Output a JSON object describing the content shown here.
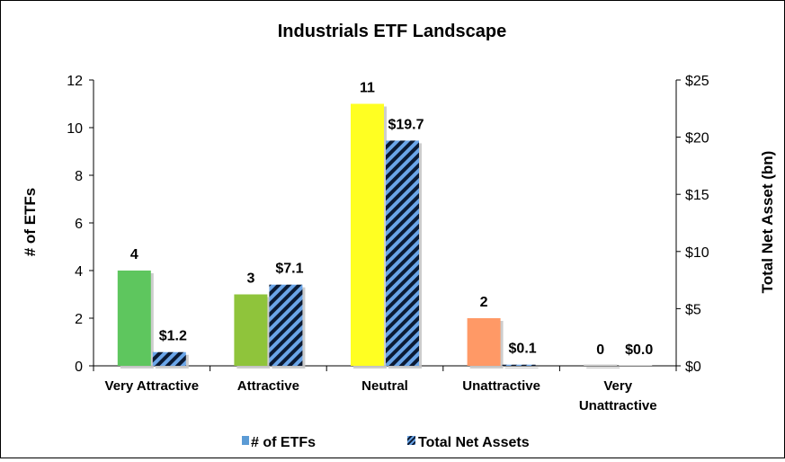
{
  "chart_data": {
    "type": "bar",
    "title": "Industrials ETF Landscape",
    "categories": [
      "Very Attractive",
      "Attractive",
      "Neutral",
      "Unattractive",
      "Very Unattractive"
    ],
    "category_lines": [
      [
        "Very Attractive"
      ],
      [
        "Attractive"
      ],
      [
        "Neutral"
      ],
      [
        "Unattractive"
      ],
      [
        "Very",
        "Unattractive"
      ]
    ],
    "bar_colors": [
      "#5ec65e",
      "#8fc43b",
      "#ffff22",
      "#ff9966",
      "#cfcfcf"
    ],
    "series": [
      {
        "name": "# of ETFs",
        "axis": "left",
        "values": [
          4,
          3,
          11,
          2,
          0
        ],
        "labels": [
          "4",
          "3",
          "11",
          "2",
          "0"
        ]
      },
      {
        "name": "Total Net Assets",
        "axis": "right",
        "pattern": "diagonal-stripes",
        "pattern_colors": [
          "#6aa5e8",
          "#0b1a33"
        ],
        "values": [
          1.2,
          7.1,
          19.7,
          0.1,
          0.0
        ],
        "labels": [
          "$1.2",
          "$7.1",
          "$19.7",
          "$0.1",
          "$0.0"
        ]
      }
    ],
    "ylabel": "# of ETFs",
    "ylim": [
      0,
      12
    ],
    "yticks": [
      "0",
      "2",
      "4",
      "6",
      "8",
      "10",
      "12"
    ],
    "y2label": "Total Net Asset (bn)",
    "y2lim": [
      0,
      25
    ],
    "y2ticks": [
      "$0",
      "$5",
      "$10",
      "$15",
      "$20",
      "$25"
    ],
    "legend_position": "bottom",
    "legend_marker_color": "#5b9bd5",
    "grid": false
  }
}
